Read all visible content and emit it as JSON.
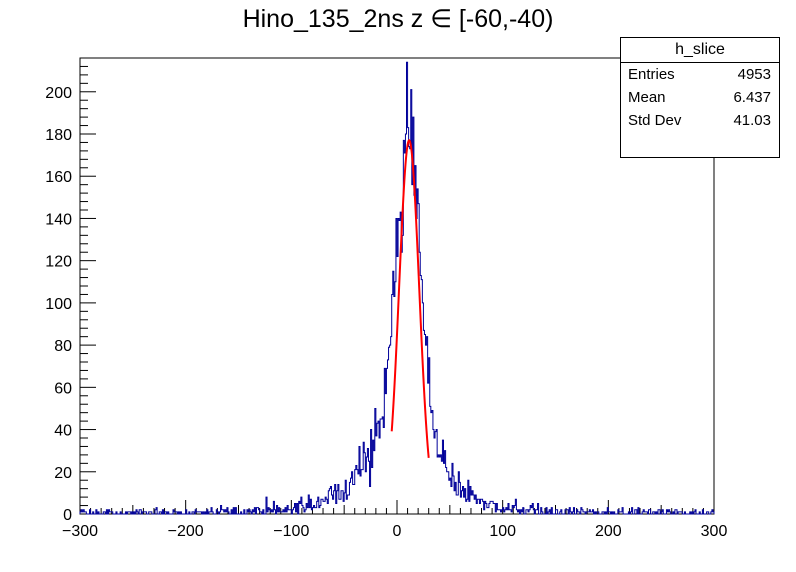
{
  "chart_data": {
    "type": "histogram",
    "title": "Hino_135_2ns z  ∈ [-60,-40)",
    "xlabel": "",
    "ylabel": "",
    "xlim": [
      -300,
      300
    ],
    "ylim": [
      0,
      216
    ],
    "x_ticks": [
      -300,
      -200,
      -100,
      0,
      100,
      200,
      300
    ],
    "y_ticks": [
      0,
      20,
      40,
      60,
      80,
      100,
      120,
      140,
      160,
      180,
      200
    ],
    "grid": false,
    "bin_width": 1,
    "histogram_color": "#000099",
    "fit_color": "#ff0000",
    "shape_peaks": [
      {
        "x": -300,
        "y": 0.5
      },
      {
        "x": -150,
        "y": 1
      },
      {
        "x": -100,
        "y": 3
      },
      {
        "x": -75,
        "y": 5
      },
      {
        "x": -50,
        "y": 12
      },
      {
        "x": -30,
        "y": 28
      },
      {
        "x": -20,
        "y": 38
      },
      {
        "x": -10,
        "y": 60
      },
      {
        "x": -5,
        "y": 85
      },
      {
        "x": 0,
        "y": 115
      },
      {
        "x": 5,
        "y": 150
      },
      {
        "x": 10,
        "y": 185
      },
      {
        "x": 13,
        "y": 190
      },
      {
        "x": 17,
        "y": 165
      },
      {
        "x": 22,
        "y": 120
      },
      {
        "x": 27,
        "y": 80
      },
      {
        "x": 33,
        "y": 45
      },
      {
        "x": 45,
        "y": 25
      },
      {
        "x": 60,
        "y": 12
      },
      {
        "x": 80,
        "y": 6
      },
      {
        "x": 100,
        "y": 3
      },
      {
        "x": 150,
        "y": 1
      },
      {
        "x": 300,
        "y": 0.5
      }
    ],
    "fit": {
      "function": "gaussian",
      "range": [
        -5,
        30
      ],
      "amplitude": 177,
      "mean": 11.5,
      "sigma": 9.5
    },
    "stats": {
      "name": "h_slice",
      "rows": [
        {
          "label": "Entries",
          "value": "4953"
        },
        {
          "label": "Mean",
          "value": "6.437"
        },
        {
          "label": "Std Dev",
          "value": "41.03"
        }
      ]
    }
  }
}
